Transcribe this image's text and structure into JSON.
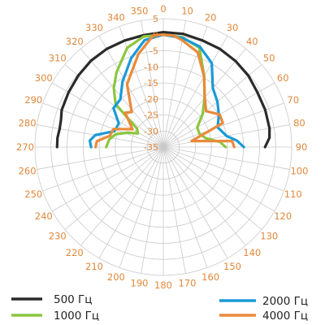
{
  "chart_data": {
    "type": "polar-line",
    "angle_unit": "degrees",
    "angle_ticks": [
      0,
      10,
      20,
      30,
      40,
      50,
      60,
      70,
      80,
      90,
      100,
      110,
      120,
      130,
      140,
      150,
      160,
      170,
      180,
      190,
      200,
      210,
      220,
      230,
      240,
      250,
      260,
      270,
      280,
      290,
      300,
      310,
      320,
      330,
      340,
      350
    ],
    "radial_ticks": [
      5,
      0,
      -5,
      -10,
      -15,
      -20,
      -25,
      -30,
      -35
    ],
    "radial_range": [
      -35,
      5
    ],
    "grid": true,
    "legend_position": "bottom",
    "series": [
      {
        "name": "500 Гц",
        "color": "#2b2b2b",
        "points": [
          [
            270,
            -1.9
          ],
          [
            275,
            -1.9
          ],
          [
            280,
            -2.2
          ],
          [
            285,
            -2
          ],
          [
            290,
            -1.3
          ],
          [
            300,
            -0.9
          ],
          [
            310,
            -0.4
          ],
          [
            320,
            0.1
          ],
          [
            330,
            0.3
          ],
          [
            340,
            0.3
          ],
          [
            350,
            0.4
          ],
          [
            0,
            0.8
          ],
          [
            10,
            0.8
          ],
          [
            20,
            0.4
          ],
          [
            30,
            0.3
          ],
          [
            40,
            0
          ],
          [
            50,
            -0.4
          ],
          [
            60,
            -1.1
          ],
          [
            70,
            -1.2
          ],
          [
            80,
            -1.4
          ],
          [
            85,
            -1.8
          ],
          [
            90,
            -3.3
          ]
        ]
      },
      {
        "name": "1000 Гц",
        "color": "#8cc63f",
        "points": [
          [
            270,
            -17.2
          ],
          [
            278,
            -18
          ],
          [
            285,
            -19.6
          ],
          [
            292,
            -23
          ],
          [
            298,
            -26
          ],
          [
            305,
            -25
          ],
          [
            312,
            -15
          ],
          [
            320,
            -11
          ],
          [
            328,
            -7.5
          ],
          [
            340,
            -2.1
          ],
          [
            350,
            0
          ],
          [
            0,
            0
          ],
          [
            10,
            -0.3
          ],
          [
            20,
            -2.1
          ],
          [
            30,
            -9.5
          ],
          [
            40,
            -15
          ],
          [
            50,
            -19
          ],
          [
            60,
            -22.8
          ],
          [
            70,
            -23
          ],
          [
            78,
            -21.5
          ],
          [
            85,
            -17.2
          ],
          [
            90,
            -15.6
          ]
        ]
      },
      {
        "name": "2000 Гц",
        "color": "#1a9ad6",
        "points": [
          [
            270,
            -12.5
          ],
          [
            275,
            -12
          ],
          [
            280,
            -13.5
          ],
          [
            288,
            -19
          ],
          [
            298,
            -19.3
          ],
          [
            308,
            -15.3
          ],
          [
            318,
            -15
          ],
          [
            328,
            -11
          ],
          [
            340,
            -5.6
          ],
          [
            350,
            -1.2
          ],
          [
            0,
            0
          ],
          [
            10,
            -0.5
          ],
          [
            20,
            -1.7
          ],
          [
            30,
            -4.8
          ],
          [
            40,
            -11
          ],
          [
            50,
            -13
          ],
          [
            60,
            -15
          ],
          [
            70,
            -17
          ],
          [
            80,
            -15
          ],
          [
            85,
            -12
          ],
          [
            90,
            -9.9
          ]
        ]
      },
      {
        "name": "4000 Гц",
        "color": "#ea8a3b",
        "points": [
          [
            270,
            -13.9
          ],
          [
            275,
            -14.2
          ],
          [
            282,
            -18
          ],
          [
            290,
            -18.5
          ],
          [
            300,
            -23.9
          ],
          [
            312,
            -19
          ],
          [
            318,
            -20.3
          ],
          [
            330,
            -12.4
          ],
          [
            345,
            -5
          ],
          [
            355,
            0
          ],
          [
            0,
            0
          ],
          [
            5,
            -0.1
          ],
          [
            10,
            -1.2
          ],
          [
            20,
            -3.6
          ],
          [
            30,
            -9.6
          ],
          [
            40,
            -14.9
          ],
          [
            50,
            -17.6
          ],
          [
            60,
            -14.7
          ],
          [
            68,
            -15
          ],
          [
            78,
            -26
          ],
          [
            85,
            -13.5
          ],
          [
            90,
            -12.9
          ]
        ]
      }
    ]
  },
  "legend": {
    "items": [
      {
        "label": "500 Гц",
        "color": "#2b2b2b"
      },
      {
        "label": "1000 Гц",
        "color": "#8cc63f"
      },
      {
        "label": "2000 Гц",
        "color": "#1a9ad6"
      },
      {
        "label": "4000 Гц",
        "color": "#ea8a3b"
      }
    ]
  }
}
